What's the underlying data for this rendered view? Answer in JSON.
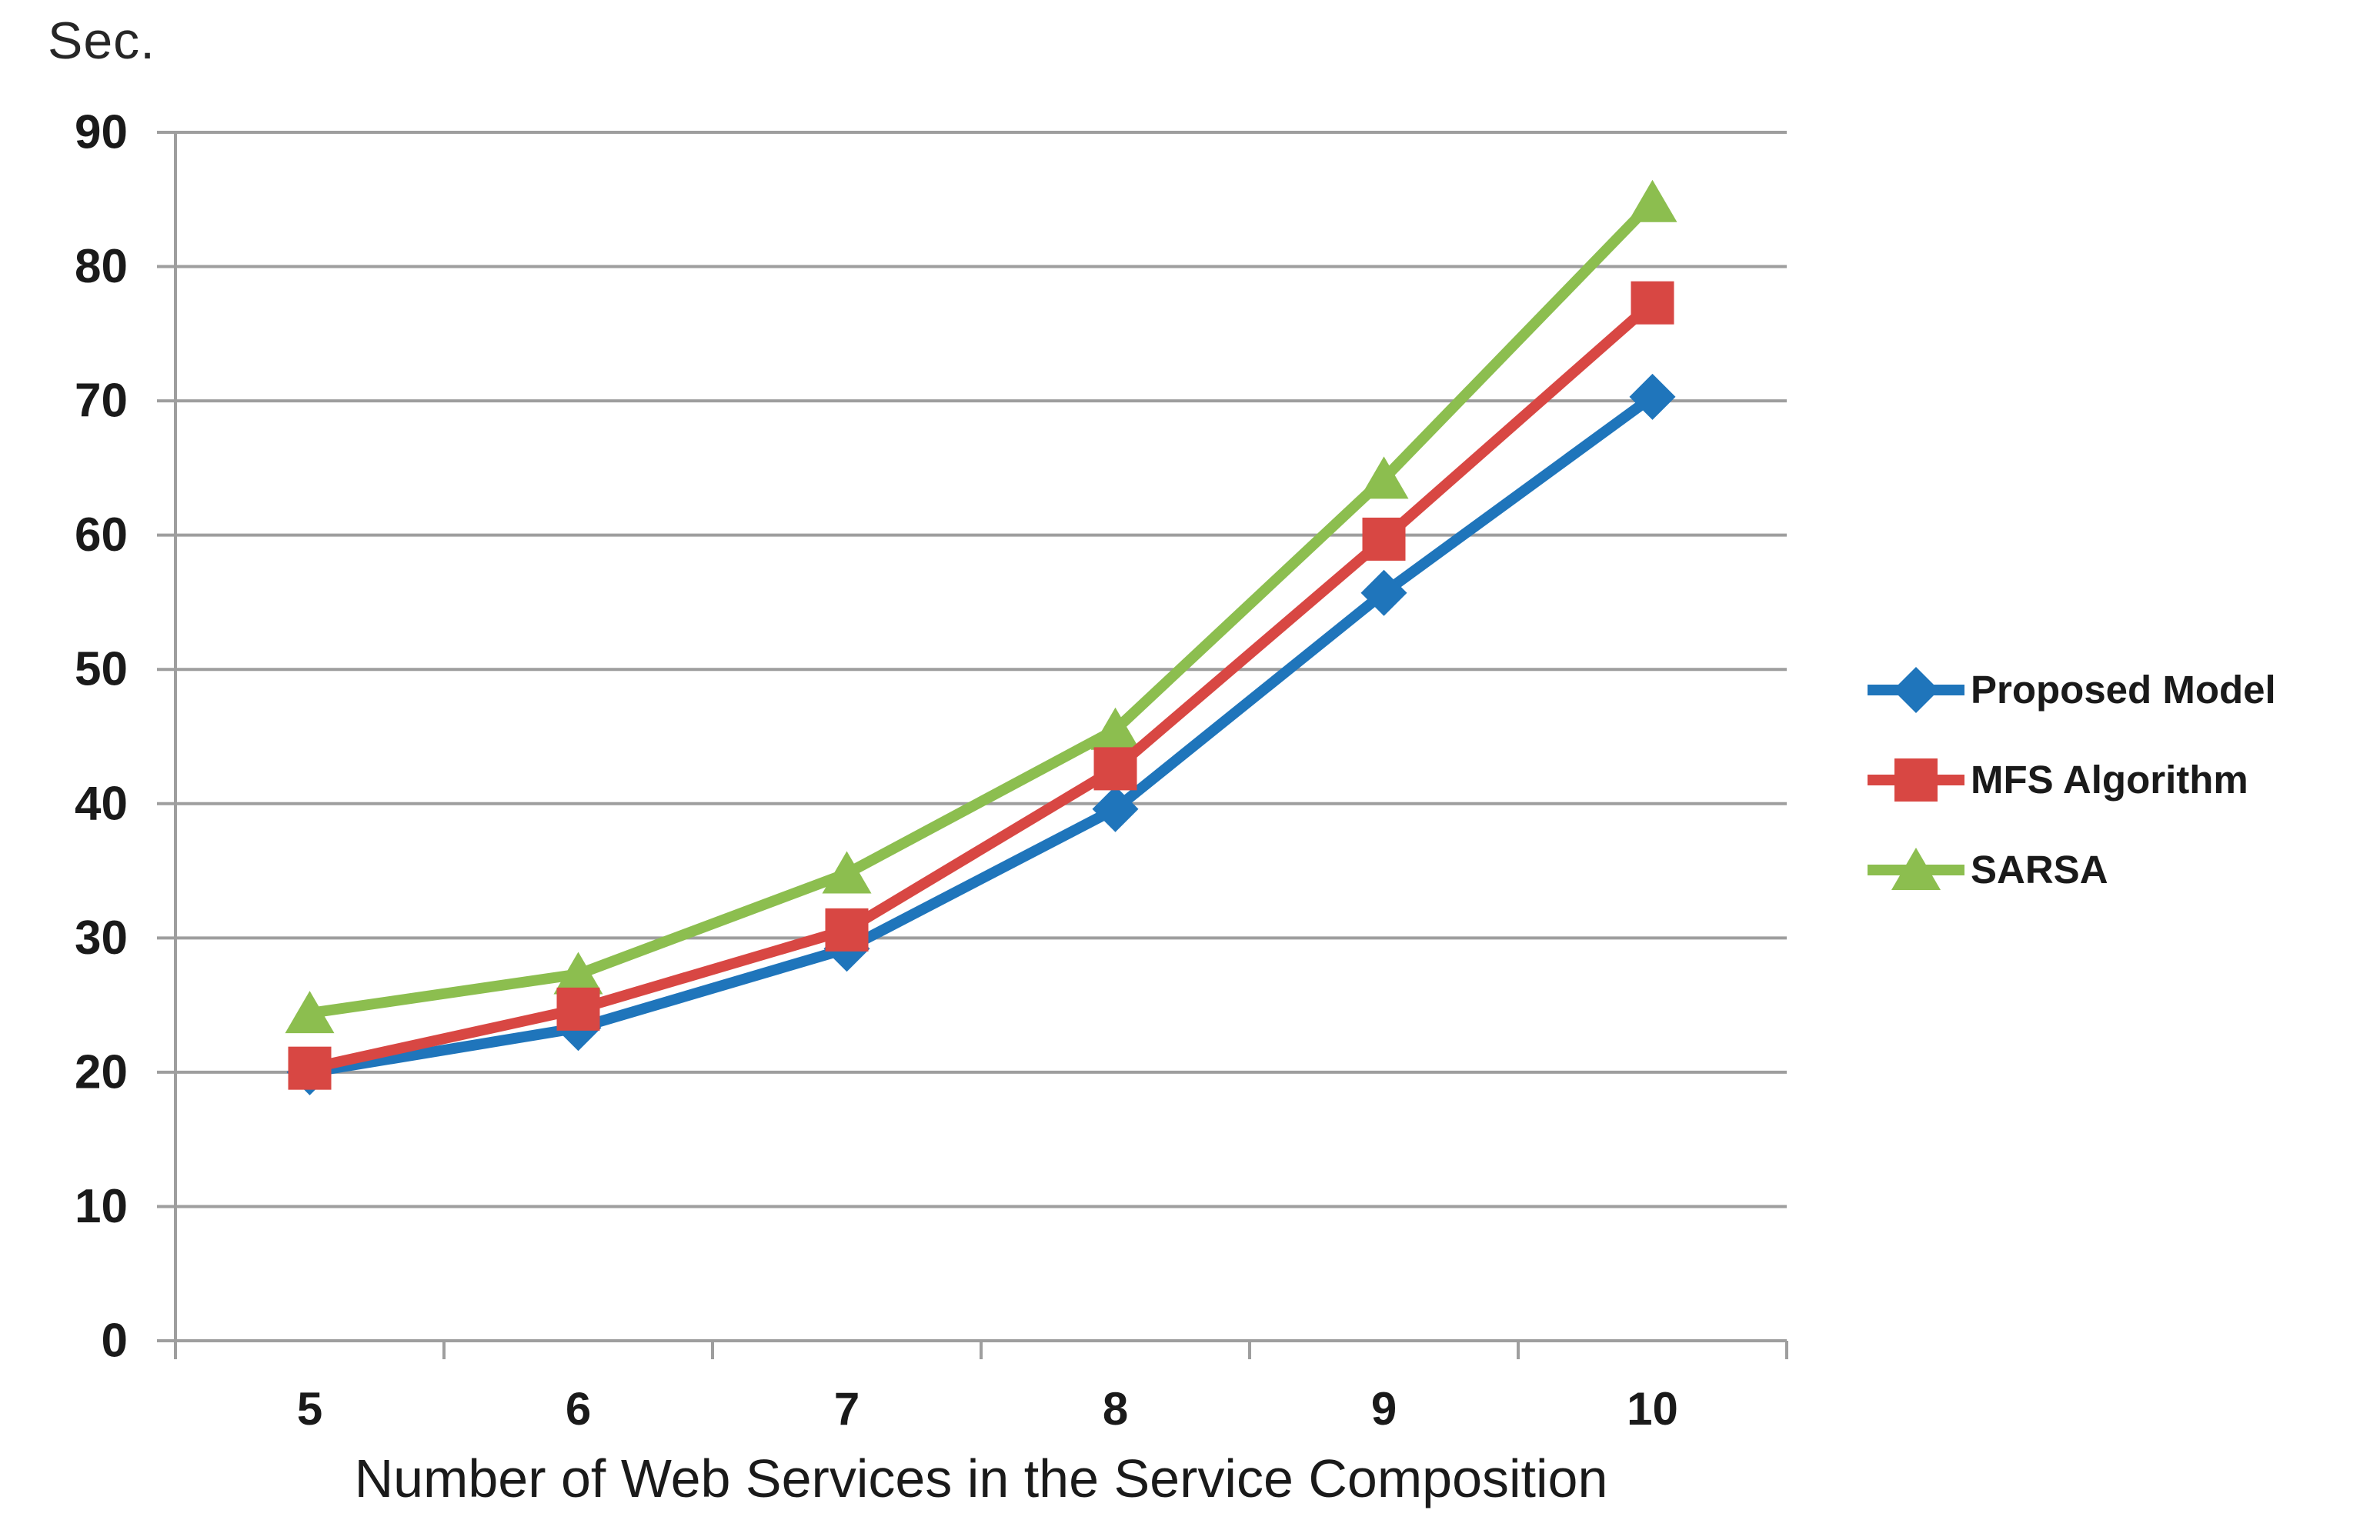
{
  "chart_data": {
    "type": "line",
    "title": "",
    "ylabel": "Sec.",
    "xlabel": "Number of Web Services in the Service Composition",
    "categories": [
      "5",
      "6",
      "7",
      "8",
      "9",
      "10"
    ],
    "series": [
      {
        "name": "Proposed Model",
        "color": "#1F75BB",
        "marker": "diamond",
        "values": [
          20.0,
          23.3,
          29.2,
          39.6,
          55.7,
          70.3
        ]
      },
      {
        "name": "MFS Algorithm",
        "color": "#D84743",
        "marker": "square",
        "values": [
          20.3,
          24.7,
          30.6,
          42.6,
          59.7,
          77.3
        ]
      },
      {
        "name": "SARSA",
        "color": "#8CBE4F",
        "marker": "triangle",
        "values": [
          24.4,
          27.3,
          34.8,
          45.5,
          64.2,
          84.8
        ]
      }
    ],
    "y_axis": {
      "min": 0,
      "max": 90,
      "tick_step": 10,
      "tick_labels": [
        "0",
        "10",
        "20",
        "30",
        "40",
        "50",
        "60",
        "70",
        "80",
        "90"
      ]
    },
    "grid": true,
    "legend_position": "right",
    "colors": {
      "gridline": "#9E9E9E",
      "axis": "#9E9E9E",
      "text": "#1a1a1a"
    }
  }
}
